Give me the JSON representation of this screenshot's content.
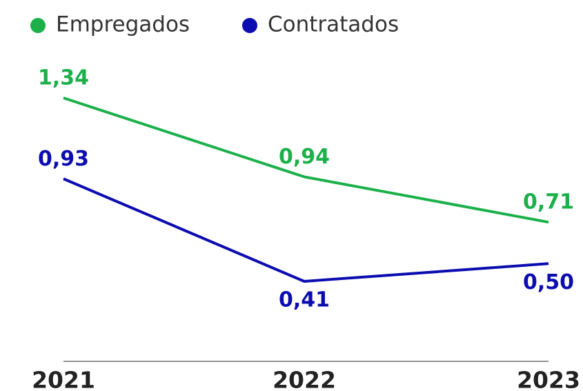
{
  "chart_data": {
    "type": "line",
    "categories": [
      "2021",
      "2022",
      "2023"
    ],
    "series": [
      {
        "name": "Empregados",
        "color": "#1bb04a",
        "values": [
          1.34,
          0.94,
          0.71
        ],
        "value_labels": [
          "1,34",
          "0,94",
          "0,71"
        ]
      },
      {
        "name": "Contratados",
        "color": "#0c0cb0",
        "values": [
          0.93,
          0.41,
          0.5
        ],
        "value_labels": [
          "0,93",
          "0,41",
          "0,50"
        ]
      }
    ]
  }
}
